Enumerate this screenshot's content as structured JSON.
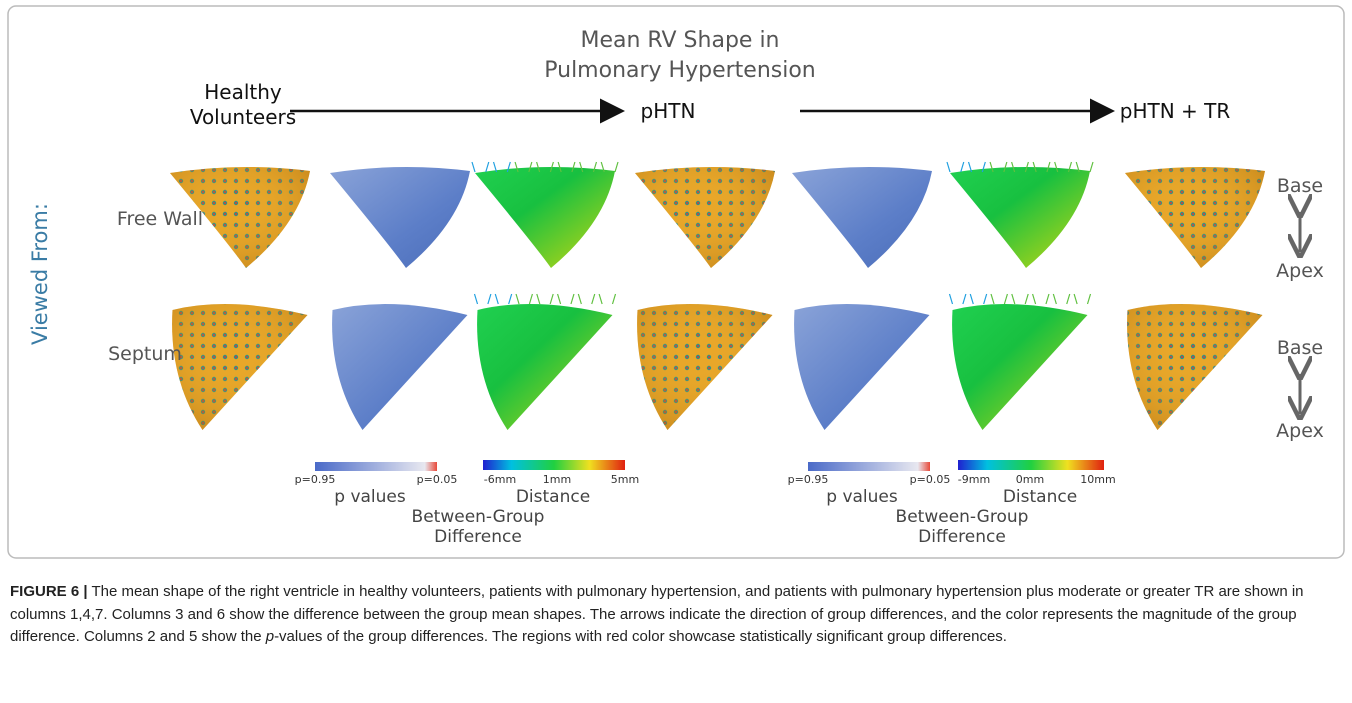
{
  "figure": {
    "title": "Mean RV Shape in Pulmonary Hypertension",
    "groups": [
      "Healthy Volunteers",
      "pHTN",
      "pHTN + TR"
    ],
    "viewed_from": "Viewed From:",
    "views": [
      "Free Wall",
      "Septum"
    ],
    "orientation": [
      {
        "top": "Base",
        "bottom": "Apex"
      },
      {
        "top": "Base",
        "bottom": "Apex"
      }
    ],
    "legends": [
      {
        "p_low": "p=0.95",
        "p_high": "p=0.05",
        "p_title": "p values",
        "d_min": "-6mm",
        "d_mid": "1mm",
        "d_max": "5mm",
        "d_title": "Distance",
        "caption": "Between-Group Difference"
      },
      {
        "p_low": "p=0.95",
        "p_high": "p=0.05",
        "p_title": "p values",
        "d_min": "-9mm",
        "d_mid": "0mm",
        "d_max": "10mm",
        "d_title": "Distance",
        "caption": "Between-Group Difference"
      }
    ]
  },
  "caption": {
    "label": "FIGURE 6 |",
    "text_before": " The mean shape of the right ventricle in healthy volunteers, patients with pulmonary hypertension, and patients with pulmonary hypertension plus moderate or greater TR are shown in columns 1,4,7. Columns 3 and 6 show the difference between the group mean shapes. The arrows indicate the direction of group differences, and the color represents the magnitude of the group difference. Columns 2 and 5 show the ",
    "p": "p",
    "text_after": "-values of the group differences. The regions with red color showcase statistically significant group differences."
  }
}
